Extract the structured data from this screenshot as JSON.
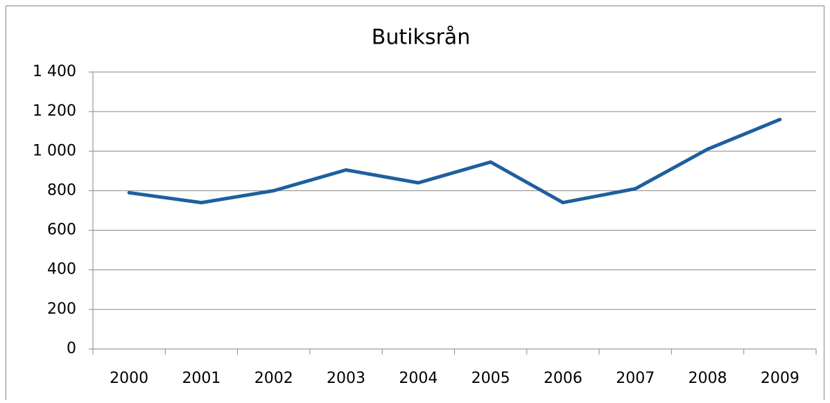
{
  "chart_data": {
    "type": "line",
    "title": "Butiksrån",
    "categories": [
      "2000",
      "2001",
      "2002",
      "2003",
      "2004",
      "2005",
      "2006",
      "2007",
      "2008",
      "2009"
    ],
    "values": [
      790,
      740,
      800,
      905,
      840,
      945,
      740,
      810,
      1010,
      1160
    ],
    "color": "#1f5f9e",
    "ylim": [
      0,
      1400
    ],
    "yticks": [
      0,
      200,
      400,
      600,
      800,
      {
        "value": 1000,
        "label": "1 000"
      },
      {
        "value": 1200,
        "label": "1 200"
      },
      {
        "value": 1400,
        "label": "1 400"
      }
    ],
    "grid": true
  }
}
